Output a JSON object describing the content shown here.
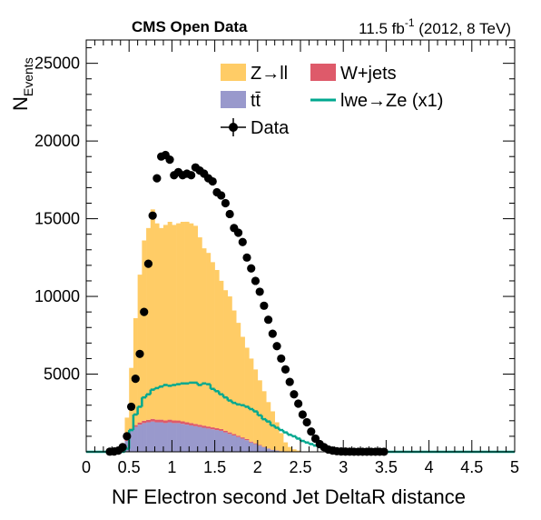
{
  "header": {
    "experiment": "CMS Open Data",
    "lumi_prefix": "11.5 fb",
    "lumi_exp": "-1",
    "lumi_suffix": " (2012, 8 TeV)"
  },
  "axes": {
    "xlabel": "NF Electron second Jet DeltaR distance",
    "ylabel_main": "N",
    "ylabel_sub": "Events",
    "x_ticks": [
      "0",
      "0.5",
      "1",
      "1.5",
      "2",
      "2.5",
      "3",
      "3.5",
      "4",
      "4.5",
      "5"
    ],
    "y_ticks": [
      "5000",
      "10000",
      "15000",
      "20000",
      "25000"
    ]
  },
  "legend": {
    "zll": "Z→ll",
    "wjets": "W+jets",
    "ttbar": "tt̄",
    "signal": "lwe→Ze (x1)",
    "data": "Data"
  },
  "chart_data": {
    "type": "histogram",
    "xlim": [
      0,
      5
    ],
    "ylim": [
      0,
      26500
    ],
    "bin_width": 0.05,
    "grid": false,
    "legend_position": "top-center",
    "colors": {
      "zll": "#ffcc66",
      "wjets": "#de5a6a",
      "ttbar": "#9999cc",
      "signal": "#00a88f",
      "data": "#000000"
    },
    "stack": {
      "bin_lo_start": 0.45,
      "ttbar": [
        700,
        1400,
        1600,
        1750,
        1850,
        1900,
        1950,
        1900,
        1900,
        1850,
        1900,
        1850,
        1850,
        1800,
        1750,
        1700,
        1650,
        1600,
        1550,
        1500,
        1450,
        1400,
        1350,
        1250,
        1150,
        1050,
        950,
        850,
        750,
        600,
        500,
        400,
        300,
        200,
        120,
        80,
        40
      ],
      "wjets": [
        60,
        100,
        120,
        140,
        150,
        160,
        170,
        170,
        170,
        170,
        170,
        170,
        165,
        160,
        155,
        150,
        145,
        140,
        135,
        130,
        125,
        120,
        115,
        110,
        100,
        95,
        90,
        80,
        70,
        60,
        50,
        40,
        30,
        20,
        15,
        10,
        5
      ],
      "zll": [
        1440,
        3900,
        6880,
        9510,
        11600,
        12340,
        13480,
        12630,
        12330,
        12580,
        12730,
        12580,
        12690,
        12840,
        12900,
        12850,
        12750,
        12060,
        11410,
        11170,
        10630,
        10180,
        9540,
        9040,
        8750,
        7950,
        7260,
        6470,
        5880,
        5340,
        4750,
        4160,
        3570,
        2980,
        2470,
        1810,
        1160,
        610,
        310,
        160,
        80
      ]
    },
    "signal": {
      "x": [
        0.45,
        0.5,
        0.55,
        0.6,
        0.65,
        0.7,
        0.75,
        0.8,
        0.85,
        0.9,
        0.95,
        1.0,
        1.05,
        1.1,
        1.15,
        1.2,
        1.25,
        1.3,
        1.35,
        1.4,
        1.45,
        1.5,
        1.55,
        1.6,
        1.65,
        1.7,
        1.75,
        1.8,
        1.85,
        1.9,
        1.95,
        2.0,
        2.05,
        2.1,
        2.15,
        2.2,
        2.25,
        2.3,
        2.35,
        2.4,
        2.45,
        2.5,
        2.55,
        2.6,
        2.65,
        2.7,
        2.75,
        2.8,
        2.85,
        2.9,
        2.95,
        3.0,
        3.05
      ],
      "y": [
        200,
        1400,
        2400,
        2900,
        3500,
        3700,
        4000,
        4100,
        4200,
        4300,
        4250,
        4300,
        4350,
        4400,
        4400,
        4450,
        4450,
        4300,
        4400,
        4350,
        4050,
        3900,
        3700,
        3500,
        3300,
        3150,
        3050,
        3000,
        2900,
        2750,
        2600,
        2350,
        2100,
        1950,
        1700,
        1550,
        1400,
        1250,
        1100,
        1000,
        850,
        700,
        600,
        500,
        400,
        300,
        250,
        200,
        150,
        100,
        50,
        20,
        0
      ]
    },
    "data": {
      "x": [
        0.275,
        0.325,
        0.375,
        0.425,
        0.475,
        0.525,
        0.575,
        0.625,
        0.675,
        0.725,
        0.775,
        0.825,
        0.875,
        0.925,
        0.975,
        1.025,
        1.075,
        1.125,
        1.175,
        1.225,
        1.275,
        1.325,
        1.375,
        1.425,
        1.475,
        1.525,
        1.575,
        1.625,
        1.675,
        1.725,
        1.775,
        1.825,
        1.875,
        1.925,
        1.975,
        2.025,
        2.075,
        2.125,
        2.175,
        2.225,
        2.275,
        2.325,
        2.375,
        2.425,
        2.475,
        2.525,
        2.575,
        2.625,
        2.675,
        2.725,
        2.775,
        2.825,
        2.875,
        2.925,
        2.975,
        3.025,
        3.075,
        3.125,
        3.175,
        3.225,
        3.275,
        3.325,
        3.375,
        3.425,
        3.475
      ],
      "y": [
        10,
        20,
        80,
        300,
        1000,
        2900,
        4700,
        6300,
        9000,
        12100,
        15200,
        17600,
        19000,
        19100,
        18800,
        17800,
        18000,
        17800,
        17900,
        17800,
        18300,
        18100,
        17900,
        17600,
        17400,
        16700,
        16500,
        16000,
        15300,
        14400,
        14100,
        13500,
        12500,
        11800,
        11000,
        10300,
        9400,
        8500,
        7600,
        6800,
        6000,
        5300,
        4500,
        3700,
        3100,
        2400,
        1900,
        1300,
        850,
        500,
        300,
        150,
        80,
        40,
        20,
        15,
        10,
        5,
        5,
        5,
        5,
        5,
        5,
        5,
        5
      ]
    }
  }
}
